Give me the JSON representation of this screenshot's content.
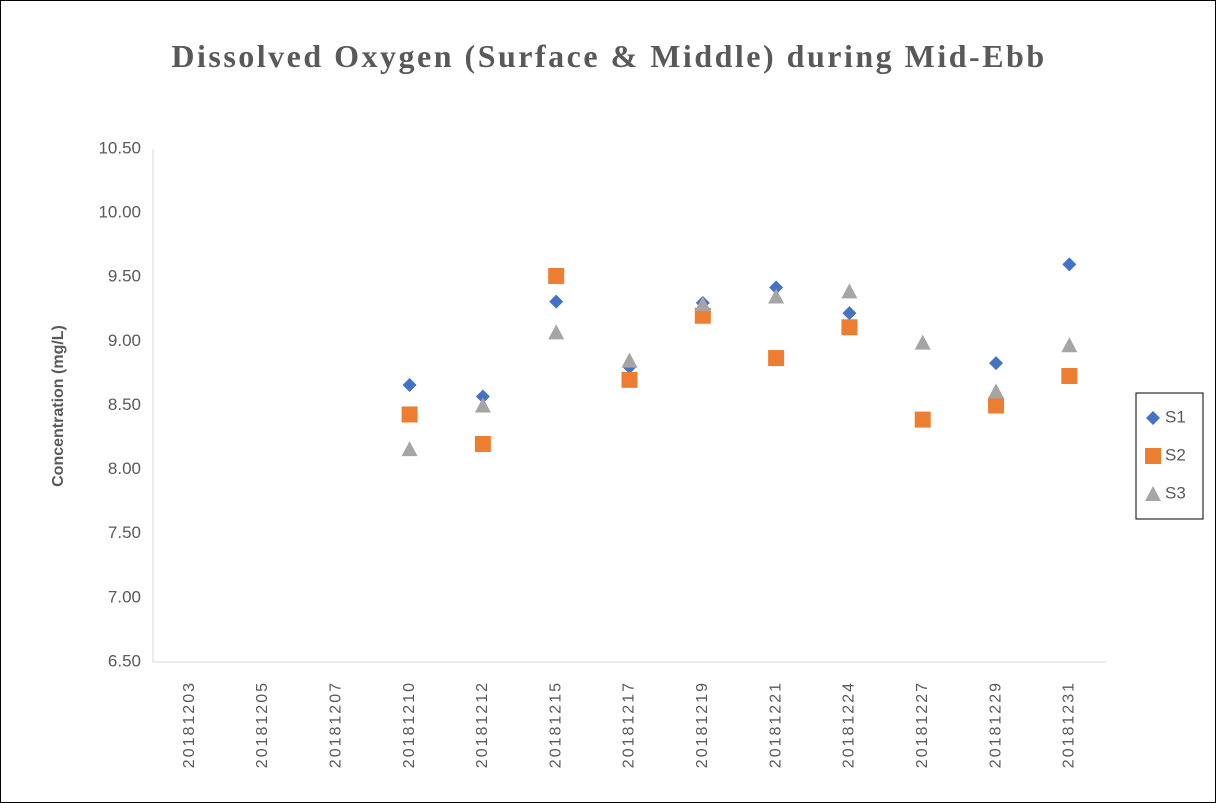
{
  "chart_data": {
    "type": "scatter",
    "title": "Dissolved Oxygen (Surface & Middle) during Mid-Ebb",
    "y_label": "Concentration (mg/L)",
    "categories": [
      "20181203",
      "20181205",
      "20181207",
      "20181210",
      "20181212",
      "20181215",
      "20181217",
      "20181219",
      "20181221",
      "20181224",
      "20181227",
      "20181229",
      "20181231"
    ],
    "series": [
      {
        "name": "S1",
        "color": "#4472c4",
        "marker": "diamond",
        "values": [
          null,
          null,
          null,
          8.66,
          8.57,
          9.31,
          8.8,
          9.3,
          9.42,
          9.22,
          null,
          8.83,
          9.6
        ]
      },
      {
        "name": "S2",
        "color": "#ed7d31",
        "marker": "square",
        "values": [
          null,
          null,
          null,
          8.43,
          8.2,
          9.51,
          8.7,
          9.2,
          8.87,
          9.11,
          8.39,
          8.5,
          8.73
        ]
      },
      {
        "name": "S3",
        "color": "#a5a5a5",
        "marker": "triangle",
        "values": [
          null,
          null,
          null,
          8.16,
          8.5,
          9.07,
          8.85,
          9.29,
          9.35,
          9.39,
          8.99,
          8.61,
          8.97
        ]
      }
    ],
    "ylim": [
      6.5,
      10.5
    ],
    "yticks": [
      {
        "value": 6.5,
        "label": "6.50"
      },
      {
        "value": 7,
        "label": "7.00"
      },
      {
        "value": 7.5,
        "label": "7.50"
      },
      {
        "value": 8,
        "label": "8.00"
      },
      {
        "value": 8.5,
        "label": "8.50"
      },
      {
        "value": 9,
        "label": "9.00"
      },
      {
        "value": 9.5,
        "label": "9.50"
      },
      {
        "value": 10,
        "label": "10.00"
      },
      {
        "value": 10.5,
        "label": "10.50"
      }
    ],
    "grid": false,
    "legend": "right"
  }
}
